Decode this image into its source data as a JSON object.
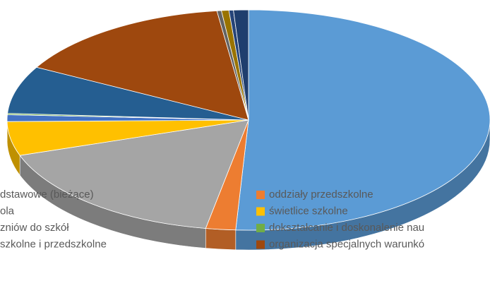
{
  "chart_data": {
    "type": "pie3d",
    "categories": [
      "dstawowe (bieżące)",
      "oddziały przedszkolne",
      "ola",
      "świetlice szkolne",
      "zniów do szkół",
      "dokształcanie i doskonalenie nau",
      "szkolne i przedszkolne",
      "organizacja specjalnych warunkó",
      null,
      null,
      null,
      null
    ],
    "values": [
      51,
      2,
      17,
      5,
      1,
      0.2,
      7,
      15,
      0.3,
      0.5,
      0.3,
      1
    ],
    "colors": [
      "#5b9bd5",
      "#ed7d31",
      "#a5a5a5",
      "#ffc000",
      "#4472c4",
      "#70ad47",
      "#255e91",
      "#9e480e",
      "#636363",
      "#997300",
      "#264478",
      "#1f3e6e"
    ]
  }
}
